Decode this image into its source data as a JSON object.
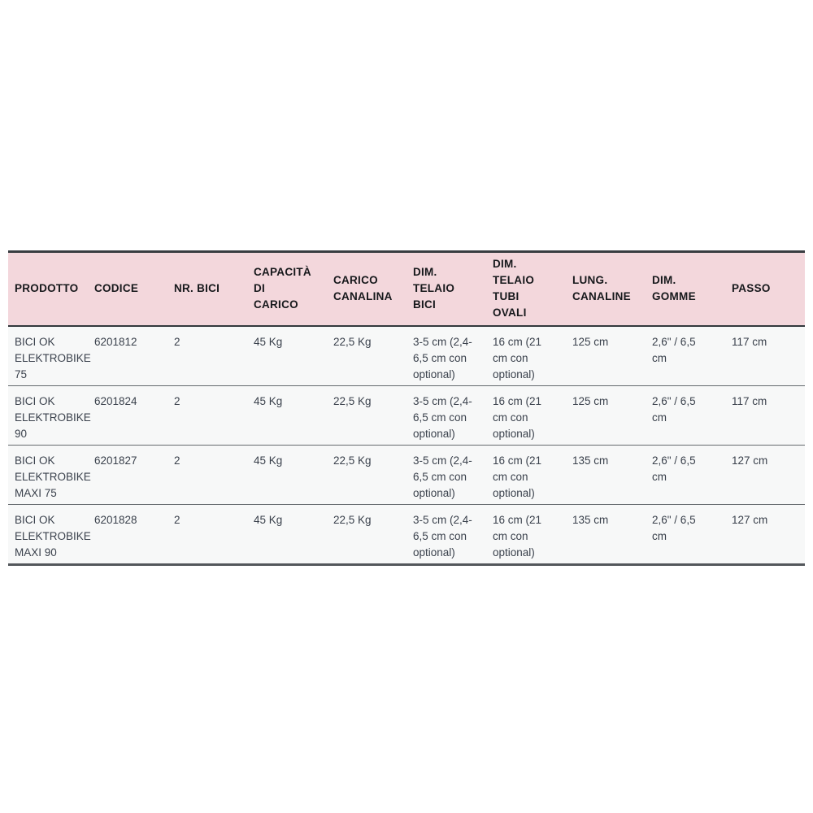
{
  "page": {
    "background_color": "#ffffff"
  },
  "table": {
    "description": "Tabella specifiche portabici elettrici",
    "header_bg_color": "#f3d7dc",
    "header_text_color": "#16181b",
    "body_text_color": "#3a414c",
    "row_bg_color": "#f7f8f8",
    "columns": [
      "PRODOTTO",
      "CODICE",
      "NR. BICI",
      "CAPACITÀ\nDI\nCARICO",
      "CARICO\nCANALINA",
      "DIM.\nTELAIO\nBICI",
      "DIM.\nTELAIO\nTUBI\nOVALI",
      "LUNG.\nCANALINE",
      "DIM.\nGOMME",
      "PASSO"
    ],
    "rows": [
      {
        "cells": [
          "BICI OK\nELEKTROBIKE\n75",
          "6201812",
          "2",
          "45 Kg",
          "22,5 Kg",
          "3-5 cm (2,4-\n6,5 cm con\noptional)",
          "16 cm (21\ncm con\noptional)",
          "125 cm",
          "2,6\" / 6,5\ncm",
          "117 cm"
        ]
      },
      {
        "cells": [
          "BICI OK\nELEKTROBIKE\n90",
          "6201824",
          "2",
          "45 Kg",
          "22,5 Kg",
          "3-5 cm (2,4-\n6,5 cm con\noptional)",
          "16 cm (21\ncm con\noptional)",
          "125 cm",
          "2,6\" / 6,5\ncm",
          "117 cm"
        ]
      },
      {
        "cells": [
          "BICI OK\nELEKTROBIKE\nMAXI 75",
          "6201827",
          "2",
          "45 Kg",
          "22,5 Kg",
          "3-5 cm (2,4-\n6,5 cm con\noptional)",
          "16 cm (21\ncm con\noptional)",
          "135 cm",
          "2,6\" / 6,5\ncm",
          "127 cm"
        ]
      },
      {
        "cells": [
          "BICI OK\nELEKTROBIKE\nMAXI 90",
          "6201828",
          "2",
          "45 Kg",
          "22,5 Kg",
          "3-5 cm (2,4-\n6,5 cm con\noptional)",
          "16 cm (21\ncm con\noptional)",
          "135 cm",
          "2,6\" / 6,5\ncm",
          "127 cm"
        ]
      }
    ]
  }
}
